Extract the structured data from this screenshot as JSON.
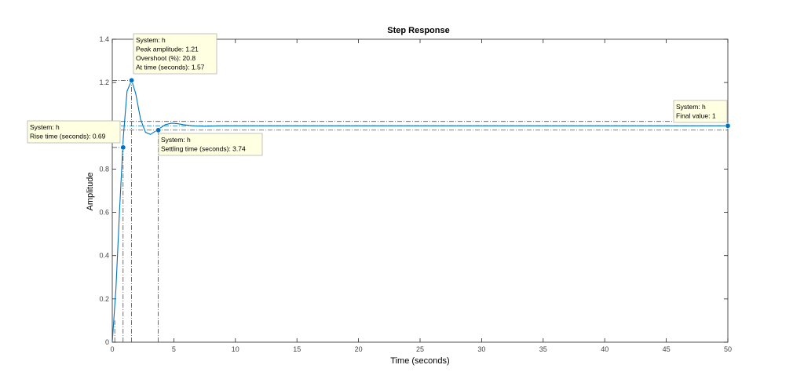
{
  "chart_data": {
    "type": "line",
    "title": "Step Response",
    "xlabel": "Time (seconds)",
    "ylabel": "Amplitude",
    "xlim": [
      0,
      50
    ],
    "ylim": [
      0,
      1.4
    ],
    "xticks": [
      0,
      5,
      10,
      15,
      20,
      25,
      30,
      35,
      40,
      45,
      50
    ],
    "yticks": [
      0,
      0.2,
      0.4,
      0.6,
      0.8,
      1,
      1.2,
      1.4
    ],
    "xtick_labels": [
      "0",
      "5",
      "10",
      "15",
      "20",
      "25",
      "30",
      "35",
      "40",
      "45",
      "50"
    ],
    "ytick_labels": [
      "0",
      "0.2",
      "0.4",
      "0.6",
      "0.8",
      "1",
      "1.2",
      "1.4"
    ],
    "grid": false,
    "series": [
      {
        "color": "#0072bd",
        "x": [
          0,
          0.3,
          0.6,
          0.9,
          1.2,
          1.57,
          1.9,
          2.3,
          2.7,
          3.1,
          3.5,
          3.9,
          4.3,
          4.8,
          5.3,
          5.8,
          6.5,
          7.5,
          9,
          12,
          20,
          30,
          40,
          50
        ],
        "y": [
          0,
          0.25,
          0.62,
          0.95,
          1.16,
          1.21,
          1.15,
          1.03,
          0.97,
          0.96,
          0.975,
          0.99,
          1.005,
          1.012,
          1.01,
          1.005,
          1.0,
          0.998,
          1.0,
          1.0,
          1.0,
          1.0,
          1.0,
          1.0
        ]
      }
    ],
    "reference_lines": {
      "upper_band": 1.02,
      "lower_band": 0.98,
      "peak_level": 1.21,
      "final_level": 1.0
    },
    "markers": [
      {
        "x": 0.88,
        "y": 0.9
      },
      {
        "x": 1.57,
        "y": 1.21
      },
      {
        "x": 3.74,
        "y": 0.98
      },
      {
        "x": 50,
        "y": 1.0
      }
    ],
    "annotations": [
      {
        "lines": [
          "System: h",
          "Peak amplitude: 1.21",
          "Overshoot (%): 20.8",
          "At time (seconds): 1.57"
        ]
      },
      {
        "lines": [
          "System: h",
          "Rise time (seconds): 0.69"
        ]
      },
      {
        "lines": [
          "System: h",
          "Settling time (seconds): 3.74"
        ]
      },
      {
        "lines": [
          "System: h",
          "Final value: 1"
        ]
      }
    ]
  }
}
